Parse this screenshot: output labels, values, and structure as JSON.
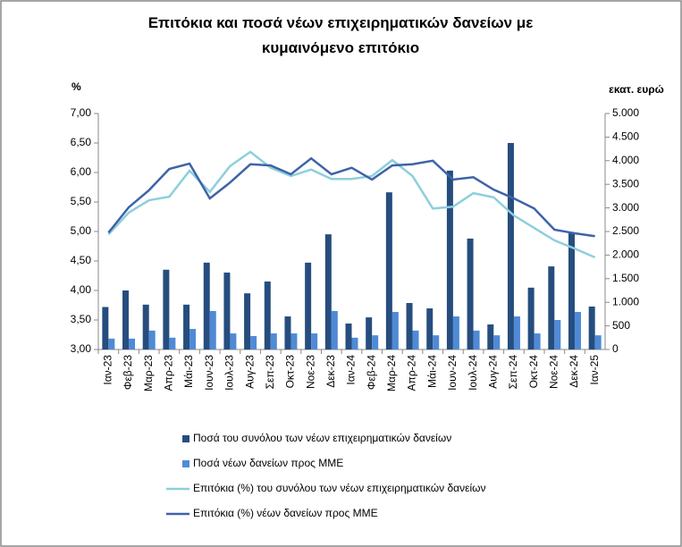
{
  "chart_data": {
    "type": "combo",
    "title": "Επιτόκια και ποσά νέων επιχειρηματικών δανείων με κυμαινόμενο επιτόκιο",
    "y_label": "%",
    "y2_label": "εκατ. ευρώ",
    "categories": [
      "Ιαν-23",
      "Φεβ-23",
      "Μαρ-23",
      "Απρ-23",
      "Μάι-23",
      "Ιουν-23",
      "Ιουλ-23",
      "Αυγ-23",
      "Σεπ-23",
      "Οκτ-23",
      "Νοε-23",
      "Δεκ-23",
      "Ιαν-24",
      "Φεβ-24",
      "Μαρ-24",
      "Απρ-24",
      "Μάι-24",
      "Ιουν-24",
      "Ιουλ-24",
      "Αυγ-24",
      "Σεπ-24",
      "Οκτ-24",
      "Νοε-24",
      "Δεκ-24",
      "Ιαν-25"
    ],
    "series": [
      {
        "name": "Ποσά του συνόλου των νέων επιχειρηματικών δανείων",
        "type": "bar",
        "axis": "y2",
        "color": "#264d7e",
        "values": [
          900,
          1250,
          950,
          1690,
          950,
          1840,
          1630,
          1190,
          1440,
          700,
          1840,
          2440,
          550,
          680,
          3330,
          985,
          870,
          3790,
          2350,
          530,
          4375,
          1310,
          1760,
          2480,
          910
        ]
      },
      {
        "name": "Ποσά νέων δανείων προς ΜΜΕ",
        "type": "bar",
        "axis": "y2",
        "color": "#4f8ad6",
        "values": [
          230,
          230,
          400,
          250,
          435,
          815,
          340,
          285,
          340,
          340,
          340,
          815,
          250,
          300,
          795,
          400,
          300,
          700,
          400,
          300,
          700,
          340,
          625,
          795,
          300
        ]
      },
      {
        "name": "Επιτόκια (%) του συνόλου των νέων επιχειρηματικών δανείων",
        "type": "line",
        "color": "#8dcfdc",
        "values": [
          4.95,
          5.32,
          5.53,
          5.59,
          6.03,
          5.67,
          6.11,
          6.35,
          6.08,
          5.94,
          6.05,
          5.89,
          5.89,
          5.94,
          6.21,
          5.94,
          5.39,
          5.42,
          5.65,
          5.58,
          5.27,
          5.06,
          4.85,
          4.71,
          4.56
        ]
      },
      {
        "name": "Επιτόκια (%) νέων δανείων προς ΜΜΕ",
        "type": "line",
        "color": "#3e63a8",
        "values": [
          4.98,
          5.41,
          5.7,
          6.06,
          6.15,
          5.56,
          5.83,
          6.14,
          6.12,
          5.97,
          6.24,
          5.97,
          6.08,
          5.88,
          6.12,
          6.14,
          6.2,
          5.88,
          5.92,
          5.71,
          5.56,
          5.39,
          5.03,
          4.97,
          4.92
        ]
      }
    ],
    "ylim": [
      3,
      7
    ],
    "yticks": [
      {
        "value": 3,
        "label": "3,00"
      },
      {
        "value": 3.5,
        "label": "3,50"
      },
      {
        "value": 4,
        "label": "4,00"
      },
      {
        "value": 4.5,
        "label": "4,50"
      },
      {
        "value": 5,
        "label": "5,00"
      },
      {
        "value": 5.5,
        "label": "5,50"
      },
      {
        "value": 6,
        "label": "6,00"
      },
      {
        "value": 6.5,
        "label": "6,50"
      },
      {
        "value": 7,
        "label": "7,00"
      }
    ],
    "y2lim": [
      0,
      5000
    ],
    "y2ticks": [
      0,
      500,
      {
        "value": 1000,
        "label": "1.000"
      },
      {
        "value": 1500,
        "label": "1.500"
      },
      {
        "value": 2000,
        "label": "2.000"
      },
      {
        "value": 2500,
        "label": "2.500"
      },
      {
        "value": 3000,
        "label": "3.000"
      },
      {
        "value": 3500,
        "label": "3.500"
      },
      {
        "value": 4000,
        "label": "4.000"
      },
      {
        "value": 4500,
        "label": "4.500"
      },
      {
        "value": 5000,
        "label": "5.000"
      }
    ],
    "legend": "bottom"
  }
}
